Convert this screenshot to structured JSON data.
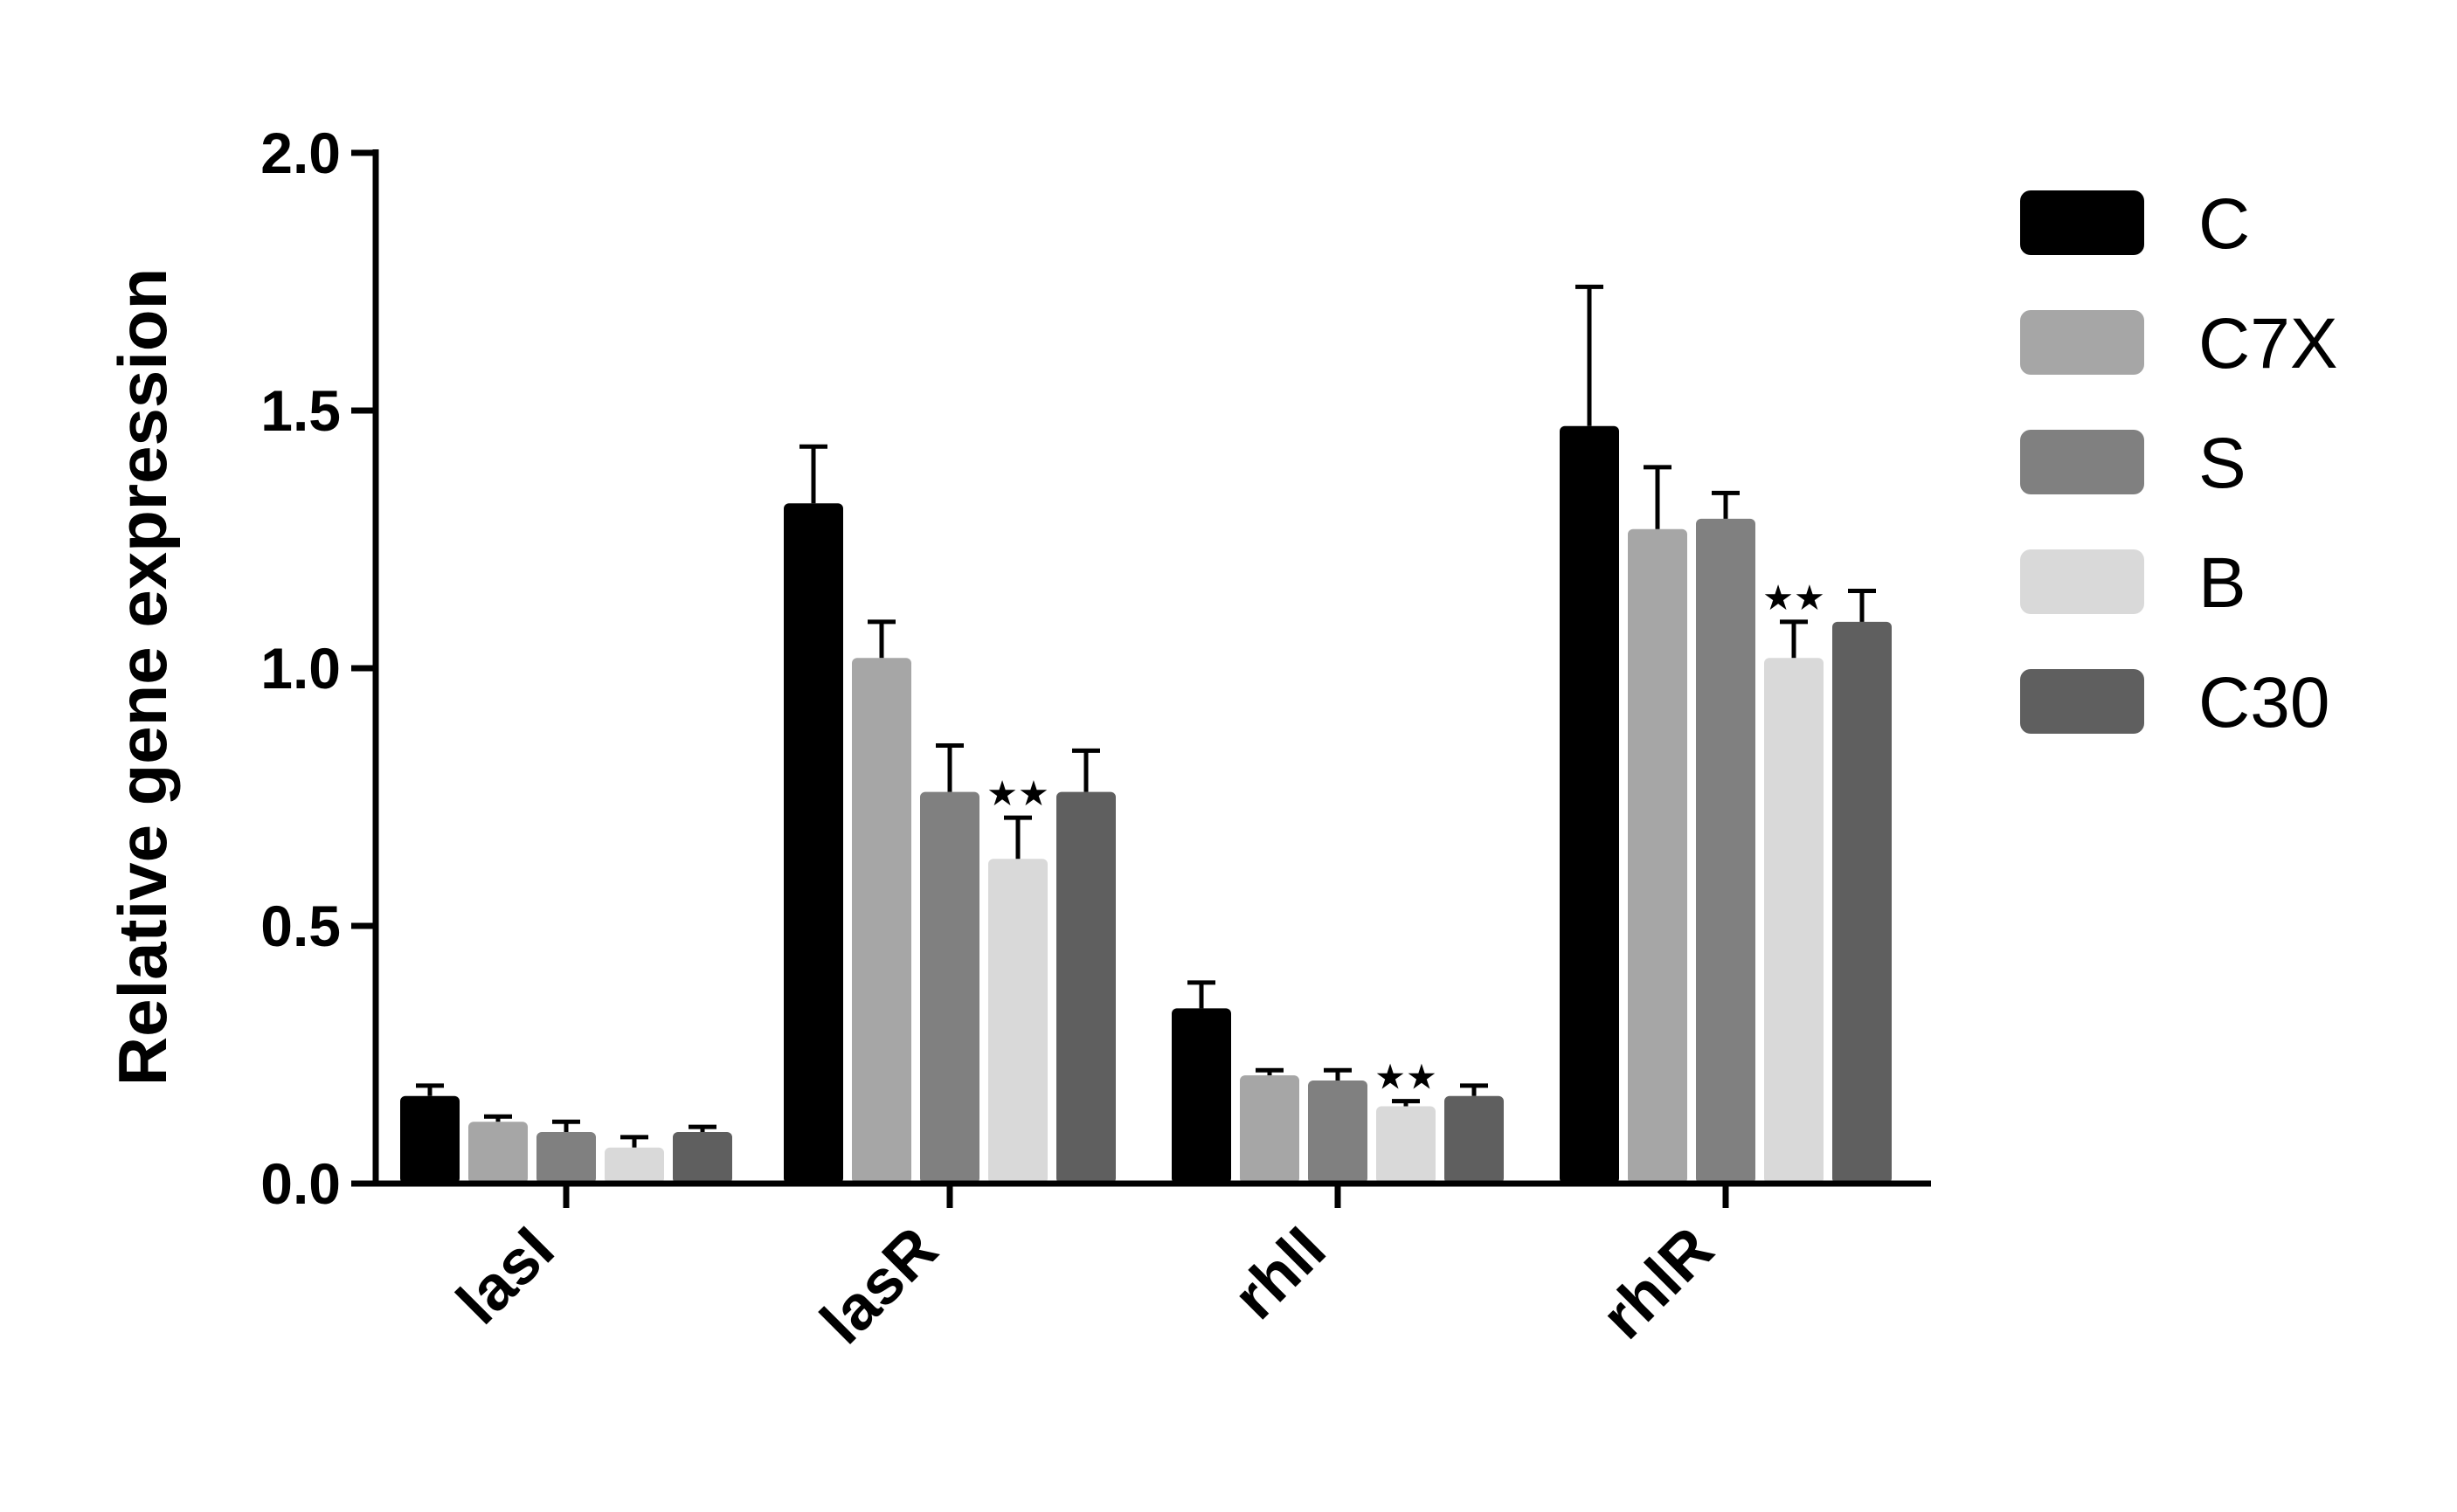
{
  "chart_data": {
    "type": "bar",
    "title": "",
    "xlabel": "",
    "ylabel": "Relative gene expression",
    "ylim": [
      0,
      2.0
    ],
    "yticks": [
      "0.0",
      "0.5",
      "1.0",
      "1.5",
      "2.0"
    ],
    "categories": [
      "lasI",
      "lasR",
      "rhlI",
      "rhlR"
    ],
    "series": [
      {
        "name": "C",
        "color": "#000000",
        "values": [
          0.17,
          1.32,
          0.34,
          1.47
        ],
        "errors": [
          0.02,
          0.11,
          0.05,
          0.27
        ]
      },
      {
        "name": "C7X",
        "color": "#a6a6a6",
        "values": [
          0.12,
          1.02,
          0.21,
          1.27
        ],
        "errors": [
          0.01,
          0.07,
          0.01,
          0.12
        ]
      },
      {
        "name": "S",
        "color": "#808080",
        "values": [
          0.1,
          0.76,
          0.2,
          1.29
        ],
        "errors": [
          0.02,
          0.09,
          0.02,
          0.05
        ]
      },
      {
        "name": "B",
        "color": "#d9d9d9",
        "values": [
          0.07,
          0.63,
          0.15,
          1.02
        ],
        "errors": [
          0.02,
          0.08,
          0.01,
          0.07
        ]
      },
      {
        "name": "C30",
        "color": "#5f5f5f",
        "values": [
          0.1,
          0.76,
          0.17,
          1.09
        ],
        "errors": [
          0.01,
          0.08,
          0.02,
          0.06
        ]
      }
    ],
    "significance": [
      {
        "category": "lasR",
        "series": "B",
        "label": "★★"
      },
      {
        "category": "rhlI",
        "series": "B",
        "label": "★★"
      },
      {
        "category": "rhlR",
        "series": "B",
        "label": "★★"
      }
    ],
    "legend": "right",
    "grid": false
  }
}
